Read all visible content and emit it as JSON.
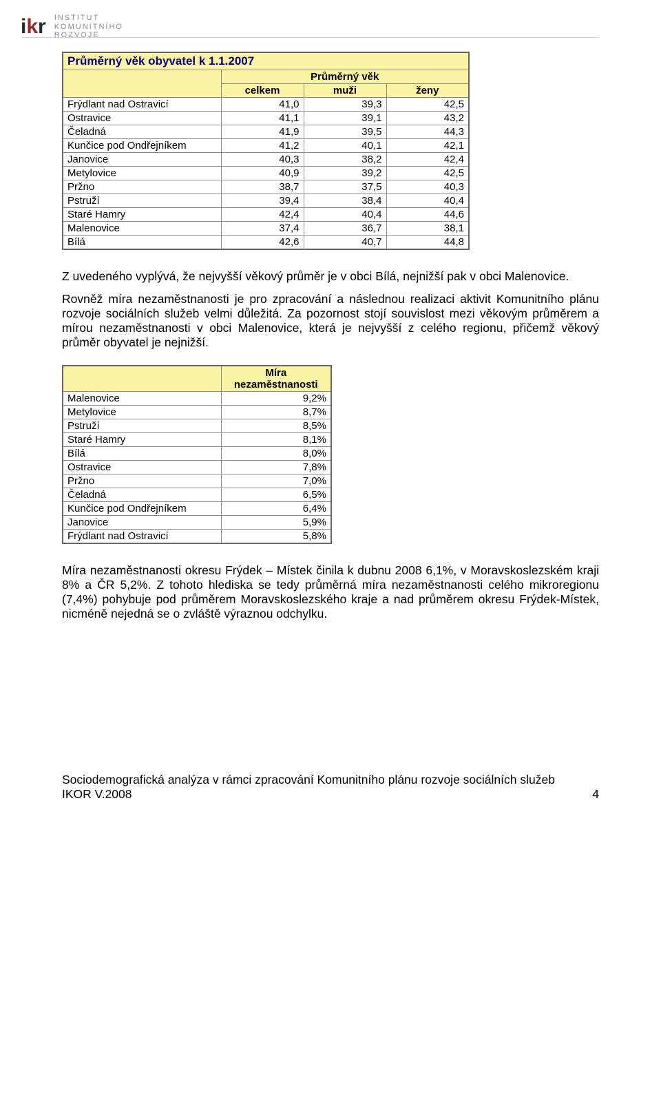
{
  "logo": {
    "letters": [
      "i",
      "k",
      "r"
    ],
    "text_line1": "INSTITUT",
    "text_line2": "KOMUNITNÍHO",
    "text_line3": "ROZVOJE"
  },
  "table1": {
    "title": "Průměrný věk obyvatel k 1.1.2007",
    "group_header": "Průměrný věk",
    "columns": [
      "celkem",
      "muži",
      "ženy"
    ],
    "col_widths": {
      "name": 230,
      "data": 120
    },
    "header_bg": "#faf3a3",
    "title_color": "#000080",
    "rows": [
      [
        "Frýdlant nad Ostravicí",
        "41,0",
        "39,3",
        "42,5"
      ],
      [
        "Ostravice",
        "41,1",
        "39,1",
        "43,2"
      ],
      [
        "Čeladná",
        "41,9",
        "39,5",
        "44,3"
      ],
      [
        "Kunčice pod Ondřejníkem",
        "41,2",
        "40,1",
        "42,1"
      ],
      [
        "Janovice",
        "40,3",
        "38,2",
        "42,4"
      ],
      [
        "Metylovice",
        "40,9",
        "39,2",
        "42,5"
      ],
      [
        "Pržno",
        "38,7",
        "37,5",
        "40,3"
      ],
      [
        "Pstruží",
        "39,4",
        "38,4",
        "40,4"
      ],
      [
        "Staré Hamry",
        "42,4",
        "40,4",
        "44,6"
      ],
      [
        "Malenovice",
        "37,4",
        "36,7",
        "38,1"
      ],
      [
        "Bílá",
        "42,6",
        "40,7",
        "44,8"
      ]
    ]
  },
  "para1": "Z uvedeného vyplývá, že nejvyšší věkový průměr je v obci Bílá, nejnižší pak v obci Malenovice.",
  "para2": "Rovněž míra nezaměstnanosti je pro zpracování a následnou realizaci aktivit Komunitního plánu rozvoje sociálních služeb velmi důležitá. Za pozornost stojí souvislost mezi věkovým průměrem a mírou nezaměstnanosti v obci Malenovice, která je nejvyšší z celého regionu, přičemž věkový průměr obyvatel je nejnižší.",
  "table2": {
    "head_line1": "Míra",
    "head_line2": "nezaměstnanosti",
    "col_widths": {
      "name": 230,
      "data": 160
    },
    "header_bg": "#faf3a3",
    "rows": [
      [
        "Malenovice",
        "9,2%"
      ],
      [
        "Metylovice",
        "8,7%"
      ],
      [
        "Pstruží",
        "8,5%"
      ],
      [
        "Staré Hamry",
        "8,1%"
      ],
      [
        "Bílá",
        "8,0%"
      ],
      [
        "Ostravice",
        "7,8%"
      ],
      [
        "Pržno",
        "7,0%"
      ],
      [
        "Čeladná",
        "6,5%"
      ],
      [
        "Kunčice pod Ondřejníkem",
        "6,4%"
      ],
      [
        "Janovice",
        "5,9%"
      ],
      [
        "Frýdlant nad Ostravicí",
        "5,8%"
      ]
    ]
  },
  "para3": "Míra nezaměstnanosti okresu Frýdek – Místek činila k dubnu 2008 6,1%, v Moravskoslezském kraji 8% a ČR 5,2%. Z tohoto hlediska se tedy průměrná míra nezaměstnanosti celého mikroregionu (7,4%) pohybuje pod průměrem Moravskoslezského kraje a nad průměrem okresu Frýdek-Místek, nicméně nejedná se o zvláště výraznou odchylku.",
  "footer": {
    "line1": "Sociodemografická analýza v rámci zpracování Komunitního plánu rozvoje sociálních služeb",
    "line2_left": "IKOR V.2008",
    "line2_right": "4"
  }
}
